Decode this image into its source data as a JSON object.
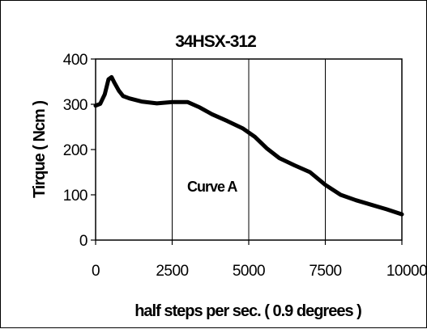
{
  "chart_data": {
    "type": "line",
    "title": "34HSX-312",
    "xlabel": "half steps per sec. ( 0.9 degrees )",
    "ylabel": "Tirque ( Ncm )",
    "xlim": [
      0,
      10000
    ],
    "ylim": [
      0,
      400
    ],
    "x_ticks": [
      "0",
      "2500",
      "5000",
      "7500",
      "10000"
    ],
    "y_ticks": [
      "0",
      "100",
      "200",
      "300",
      "400"
    ],
    "grid": "vertical",
    "line_color": "#000000",
    "annotation": "Curve A",
    "series": [
      {
        "x": [
          0,
          150,
          300,
          420,
          520,
          620,
          760,
          900,
          1100,
          1500,
          2000,
          2500,
          3000,
          3400,
          3800,
          4300,
          4800,
          5200,
          5600,
          6000,
          6500,
          7000,
          7500,
          8000,
          8500,
          9000,
          9500,
          10000
        ],
        "y": [
          297,
          301,
          322,
          355,
          360,
          347,
          330,
          318,
          313,
          306,
          302,
          305,
          305,
          293,
          278,
          263,
          247,
          228,
          202,
          181,
          165,
          150,
          122,
          100,
          88,
          78,
          68,
          57
        ]
      }
    ]
  }
}
